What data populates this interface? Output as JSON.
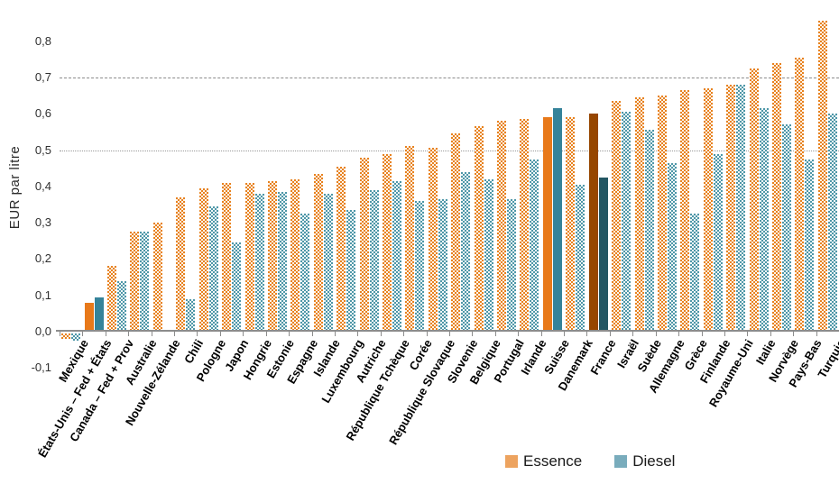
{
  "chart_data": {
    "type": "bar",
    "title": "",
    "xlabel": "",
    "ylabel": "EUR par litre",
    "ylim": [
      -0.1,
      0.9
    ],
    "legend_position": "bottom",
    "grid": "reference lines only",
    "yticks": [
      {
        "value": 0.8,
        "label": "0,8"
      },
      {
        "value": 0.7,
        "label": "0,7"
      },
      {
        "value": 0.6,
        "label": "0,6"
      },
      {
        "value": 0.5,
        "label": "0,5"
      },
      {
        "value": 0.4,
        "label": "0,4"
      },
      {
        "value": 0.3,
        "label": "0,3"
      },
      {
        "value": 0.2,
        "label": "0,2"
      },
      {
        "value": 0.1,
        "label": "0,1"
      },
      {
        "value": 0.0,
        "label": "0,0"
      },
      {
        "value": -0.1,
        "label": "-0,1"
      }
    ],
    "reference_lines": [
      {
        "value": 0.7,
        "style": "dashed"
      },
      {
        "value": 0.5,
        "style": "dotted"
      }
    ],
    "categories": [
      "Mexique",
      "États-Unis – Fed + États",
      "Canada – Fed + Prov",
      "Australie",
      "Nouvelle-Zélande",
      "Chili",
      "Pologne",
      "Japon",
      "Hongrie",
      "Estonie",
      "Espagne",
      "Islande",
      "Luxembourg",
      "Autriche",
      "République Tchèque",
      "Corée",
      "République Slovaque",
      "Slovenie",
      "Belgique",
      "Portugal",
      "Irlande",
      "Suisse",
      "Danemark",
      "France",
      "Israël",
      "Suède",
      "Allemagne",
      "Grèce",
      "Finlande",
      "Royaume-Uni",
      "Italie",
      "Norvège",
      "Pays-Bas",
      "Turquie"
    ],
    "bar_styles": [
      "hatched",
      "solid",
      "hatched",
      "hatched",
      "hatched",
      "hatched",
      "hatched",
      "hatched",
      "hatched",
      "hatched",
      "hatched",
      "hatched",
      "hatched",
      "hatched",
      "hatched",
      "hatched",
      "hatched",
      "hatched",
      "hatched",
      "hatched",
      "hatched",
      "solid",
      "hatched",
      "solid-dark",
      "hatched",
      "hatched",
      "hatched",
      "hatched",
      "hatched",
      "hatched",
      "hatched",
      "hatched",
      "hatched",
      "hatched"
    ],
    "series": [
      {
        "name": "Essence",
        "values": [
          -0.015,
          0.08,
          0.18,
          0.275,
          0.3,
          0.37,
          0.395,
          0.41,
          0.41,
          0.415,
          0.42,
          0.435,
          0.455,
          0.48,
          0.49,
          0.51,
          0.505,
          0.545,
          0.565,
          0.58,
          0.585,
          0.59,
          0.59,
          0.6,
          0.635,
          0.645,
          0.65,
          0.665,
          0.67,
          0.68,
          0.725,
          0.74,
          0.755,
          0.855
        ]
      },
      {
        "name": "Diesel",
        "values": [
          -0.02,
          0.095,
          0.14,
          0.275,
          0,
          0.09,
          0.345,
          0.245,
          0.38,
          0.385,
          0.325,
          0.38,
          0.335,
          0.39,
          0.415,
          0.36,
          0.365,
          0.44,
          0.42,
          0.365,
          0.475,
          0.615,
          0.405,
          0.425,
          0.605,
          0.555,
          0.465,
          0.325,
          0.49,
          0.68,
          0.615,
          0.57,
          0.475,
          0.6
        ]
      }
    ],
    "colors": {
      "essence": "#E8791A",
      "diesel": "#35839A",
      "essence_dark": "#964600",
      "diesel_dark": "#235663",
      "essence_hatch": "#E8821E",
      "diesel_hatch": "#4E97A8",
      "legend_essence": "#EDA35F",
      "legend_diesel": "#79ACBC",
      "axis": "#8C8C8C",
      "gridline": "#999999"
    }
  }
}
